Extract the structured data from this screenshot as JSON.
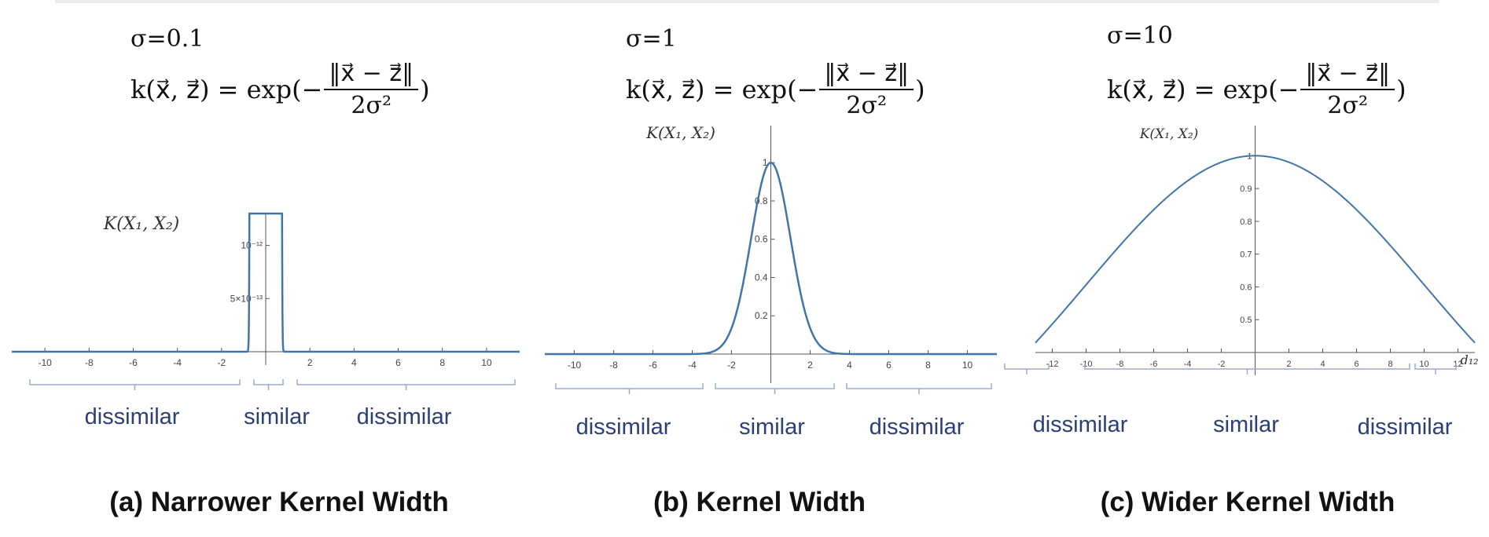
{
  "figure": {
    "panels": [
      {
        "sigma_text": "σ=0.1",
        "formula": {
          "lhs": "k(x⃗, z⃗) = exp(−",
          "numerator": "‖x⃗ − z⃗‖",
          "denominator": "2σ²",
          "rhs": ")"
        },
        "regions": [
          "dissimilar",
          "similar",
          "dissimilar"
        ],
        "caption": "(a) Narrower Kernel Width"
      },
      {
        "sigma_text": "σ=1",
        "formula": {
          "lhs": "k(x⃗, z⃗) = exp(−",
          "numerator": "‖x⃗ − z⃗‖",
          "denominator": "2σ²",
          "rhs": ")"
        },
        "regions": [
          "dissimilar",
          "similar",
          "dissimilar"
        ],
        "caption": "(b) Kernel Width"
      },
      {
        "sigma_text": "σ=10",
        "formula": {
          "lhs": "k(x⃗, z⃗) = exp(−",
          "numerator": "‖x⃗ − z⃗‖",
          "denominator": "2σ²",
          "rhs": ")"
        },
        "regions": [
          "dissimilar",
          "similar",
          "dissimilar"
        ],
        "caption": "(c) Wider Kernel Width"
      }
    ]
  },
  "chart_data": [
    {
      "type": "line",
      "title": "",
      "ylabel": "K(X₁, X₂)",
      "xlabel": "",
      "sigma": 0.1,
      "xlim": [
        -11.5,
        11.5
      ],
      "ylim": [
        0,
        1.3e-12
      ],
      "x_ticks": [
        "-10",
        "-8",
        "-6",
        "-4",
        "-2",
        "2",
        "4",
        "6",
        "8",
        "10"
      ],
      "x_tick_values": [
        -10,
        -8,
        -6,
        -4,
        -2,
        2,
        4,
        6,
        8,
        10
      ],
      "y_ticks": [
        "5×10⁻¹³",
        "10⁻¹²"
      ],
      "y_tick_values": [
        5e-13,
        1e-12
      ],
      "curve": "exp(-x^2/(2*0.1^2))",
      "series_color": "#3f76ac"
    },
    {
      "type": "line",
      "title": "",
      "ylabel": "K(X₁, X₂)",
      "xlabel": "",
      "sigma": 1,
      "xlim": [
        -11.5,
        11.5
      ],
      "ylim": [
        0,
        1.05
      ],
      "x_ticks": [
        "-10",
        "-8",
        "-6",
        "-4",
        "-2",
        "2",
        "4",
        "6",
        "8",
        "10"
      ],
      "x_tick_values": [
        -10,
        -8,
        -6,
        -4,
        -2,
        2,
        4,
        6,
        8,
        10
      ],
      "y_ticks": [
        "0.2",
        "0.4",
        "0.6",
        "0.8",
        "1"
      ],
      "y_tick_values": [
        0.2,
        0.4,
        0.6,
        0.8,
        1
      ],
      "curve": "exp(-x^2/(2*1^2))",
      "series_color": "#3f76ac"
    },
    {
      "type": "line",
      "title": "",
      "ylabel": "K(X₁, X₂)",
      "xlabel": "d₁₂",
      "sigma": 10,
      "xlim": [
        -13,
        13
      ],
      "ylim": [
        0.4,
        1.02
      ],
      "x_ticks": [
        "-12",
        "-10",
        "-8",
        "-6",
        "-4",
        "-2",
        "2",
        "4",
        "6",
        "8",
        "10",
        "12"
      ],
      "x_tick_values": [
        -12,
        -10,
        -8,
        -6,
        -4,
        -2,
        2,
        4,
        6,
        8,
        10,
        12
      ],
      "y_ticks": [
        "0.5",
        "0.6",
        "0.7",
        "0.8",
        "0.9",
        "1"
      ],
      "y_tick_values": [
        0.5,
        0.6,
        0.7,
        0.8,
        0.9,
        1
      ],
      "curve": "exp(-x^2/(2*10^2))",
      "series_color": "#3f76ac"
    }
  ]
}
